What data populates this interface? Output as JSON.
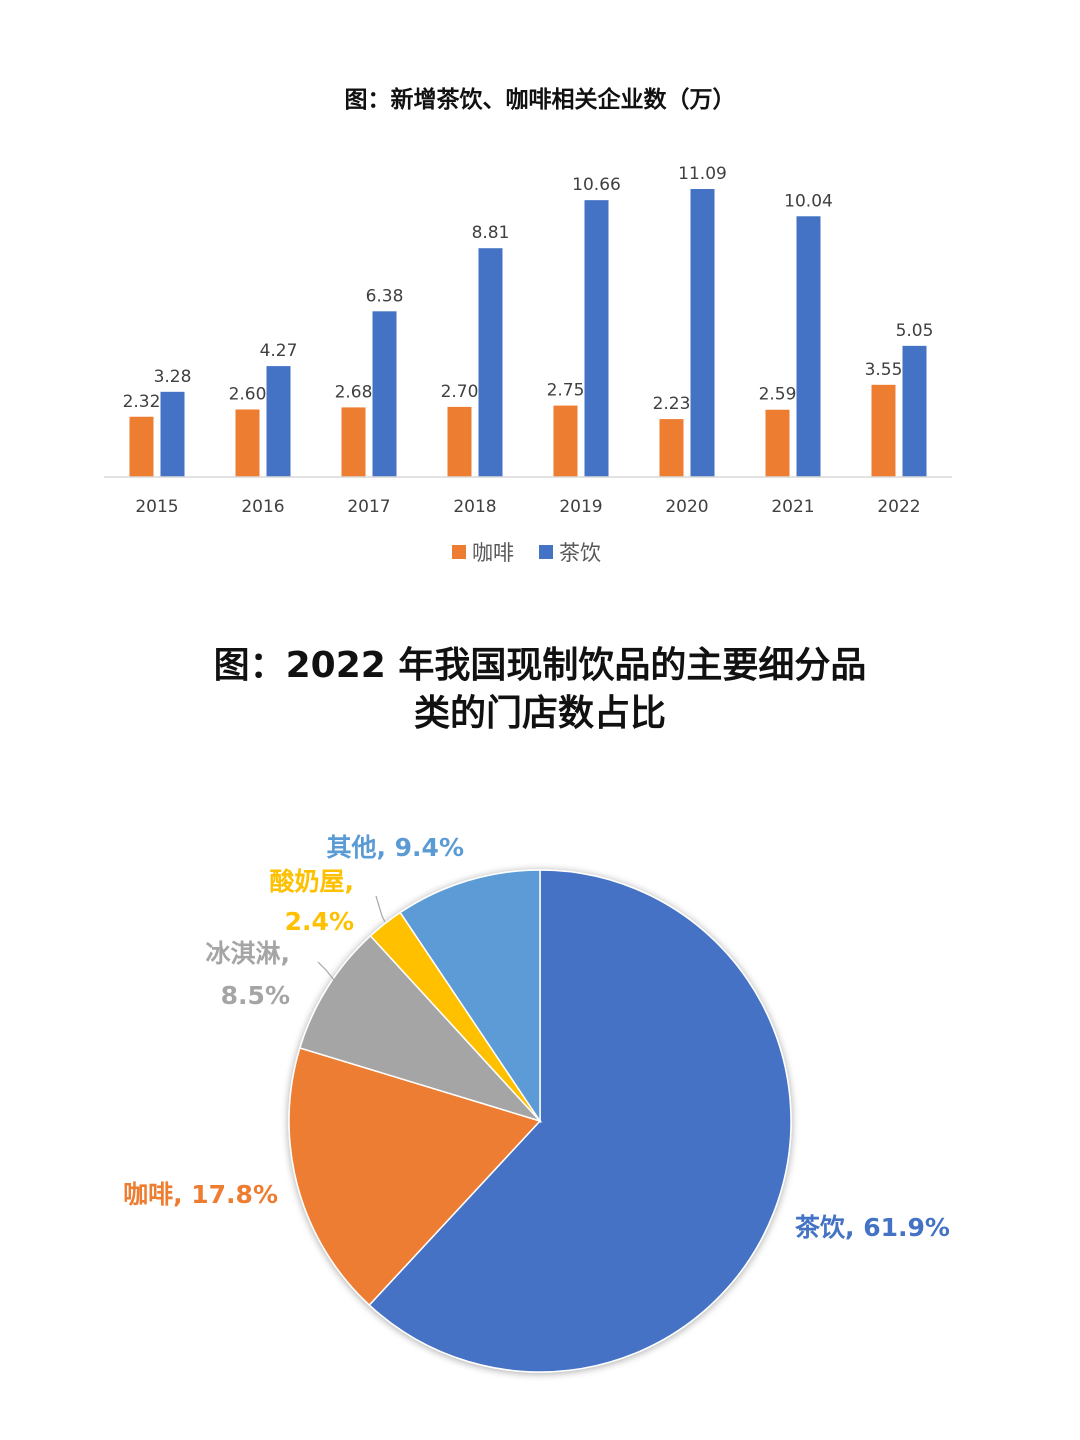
{
  "charts": {
    "bar": {
      "title": "图：新增茶饮、咖啡相关企业数（万）"
    },
    "pie": {
      "title_line1": "图：2022 年我国现制饮品的主要细分品",
      "title_line2": "类的门店数占比"
    }
  },
  "chart_data": [
    {
      "type": "bar",
      "title": "图：新增茶饮、咖啡相关企业数（万）",
      "xlabel": "",
      "ylabel": "",
      "categories": [
        "2015",
        "2016",
        "2017",
        "2018",
        "2019",
        "2020",
        "2021",
        "2022"
      ],
      "series": [
        {
          "name": "咖啡",
          "color": "#ED7D31",
          "values": [
            2.32,
            2.6,
            2.68,
            2.7,
            2.75,
            2.23,
            2.59,
            3.55
          ]
        },
        {
          "name": "茶饮",
          "color": "#4472C4",
          "values": [
            3.28,
            4.27,
            6.38,
            8.81,
            10.66,
            11.09,
            10.04,
            5.05
          ]
        }
      ],
      "value_labels": [
        [
          "2.32",
          "2.60",
          "2.68",
          "2.70",
          "2.75",
          "2.23",
          "2.59",
          "3.55"
        ],
        [
          "3.28",
          "4.27",
          "6.38",
          "8.81",
          "10.66",
          "11.09",
          "10.04",
          "5.05"
        ]
      ],
      "ylim": [
        0,
        12
      ],
      "grid": false,
      "legend_position": "bottom"
    },
    {
      "type": "pie",
      "title": "图：2022 年我国现制饮品的主要细分品类的门店数占比",
      "start": "top",
      "direction": "clockwise",
      "slices": [
        {
          "name": "茶饮",
          "value": 61.9,
          "label": "茶饮, 61.9%",
          "color": "#4472C4",
          "label_color": "#4472C4"
        },
        {
          "name": "咖啡",
          "value": 17.8,
          "label": "咖啡, 17.8%",
          "color": "#ED7D31",
          "label_color": "#ED7D31"
        },
        {
          "name": "冰淇淋",
          "value": 8.5,
          "label_lines": [
            "冰淇淋,",
            "8.5%"
          ],
          "color": "#A5A5A5",
          "label_color": "#A5A5A5"
        },
        {
          "name": "酸奶屋",
          "value": 2.4,
          "label_lines": [
            "酸奶屋,",
            "2.4%"
          ],
          "color": "#FFC000",
          "label_color": "#FFC000"
        },
        {
          "name": "其他",
          "value": 9.4,
          "label": "其他, 9.4%",
          "color": "#5B9BD5",
          "label_color": "#5B9BD5"
        }
      ]
    }
  ]
}
